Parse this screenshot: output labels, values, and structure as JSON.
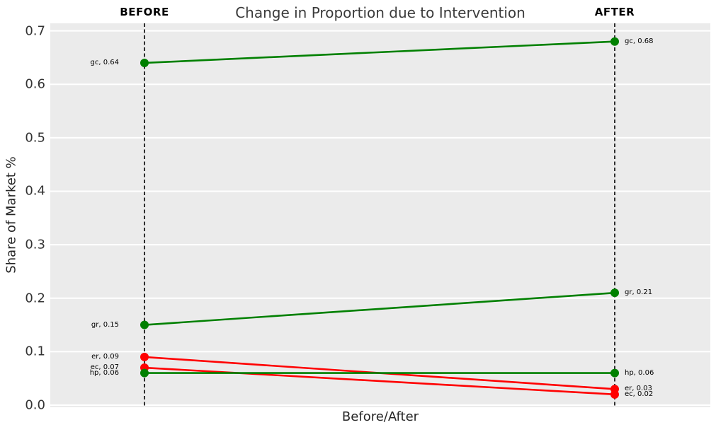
{
  "chart_data": {
    "type": "line",
    "subtype": "slope-chart",
    "title": "Change in Proportion due to Intervention",
    "xlabel": "Before/After",
    "ylabel": "Share of Market %",
    "columns": [
      "BEFORE",
      "AFTER"
    ],
    "yticks": [
      "0.0",
      "0.1",
      "0.2",
      "0.3",
      "0.4",
      "0.5",
      "0.6",
      "0.7"
    ],
    "ylim": [
      -0.004,
      0.714
    ],
    "grid": "horizontal-white-major",
    "plot_background": "#ebebeb",
    "gridline_color": "#ffffff",
    "column_line_style": "black-dashed-vertical",
    "colors": {
      "increase": "#008000",
      "decrease": "#ff0000"
    },
    "series": [
      {
        "name": "gc",
        "color": "#008000",
        "before": {
          "value": 0.64,
          "label": "gc, 0.64"
        },
        "after": {
          "value": 0.68,
          "label": "gc, 0.68"
        }
      },
      {
        "name": "gr",
        "color": "#008000",
        "before": {
          "value": 0.15,
          "label": "gr, 0.15"
        },
        "after": {
          "value": 0.21,
          "label": "gr, 0.21"
        }
      },
      {
        "name": "er",
        "color": "#ff0000",
        "before": {
          "value": 0.09,
          "label": "er, 0.09"
        },
        "after": {
          "value": 0.03,
          "label": "er, 0.03"
        }
      },
      {
        "name": "ec",
        "color": "#ff0000",
        "before": {
          "value": 0.07,
          "label": "ec, 0.07"
        },
        "after": {
          "value": 0.02,
          "label": "ec, 0.02"
        }
      },
      {
        "name": "hp",
        "color": "#008000",
        "before": {
          "value": 0.06,
          "label": "hp, 0.06"
        },
        "after": {
          "value": 0.06,
          "label": "hp, 0.06"
        }
      }
    ]
  }
}
